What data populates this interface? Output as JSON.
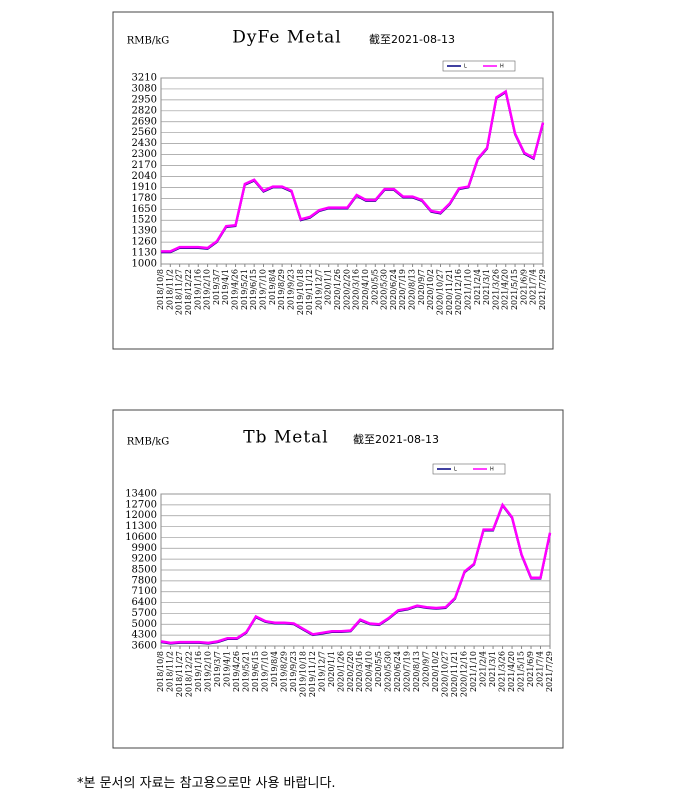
{
  "chart_data": [
    {
      "type": "line",
      "title": "DyFe Metal",
      "subtitle": "截至2021-08-13",
      "y_label": "RMB/kG",
      "categories": [
        "2018/10/8",
        "2018/11/2",
        "2018/11/27",
        "2018/12/22",
        "2019/1/16",
        "2019/2/10",
        "2019/3/7",
        "2019/4/1",
        "2019/4/26",
        "2019/5/21",
        "2019/6/15",
        "2019/7/10",
        "2019/8/4",
        "2019/8/29",
        "2019/9/23",
        "2019/10/18",
        "2019/11/12",
        "2019/12/7",
        "2020/1/1",
        "2020/1/26",
        "2020/2/20",
        "2020/3/16",
        "2020/4/10",
        "2020/5/5",
        "2020/5/30",
        "2020/6/24",
        "2020/7/19",
        "2020/8/13",
        "2020/9/7",
        "2020/10/2",
        "2020/10/27",
        "2020/11/21",
        "2020/12/16",
        "2021/1/10",
        "2021/2/4",
        "2021/3/1",
        "2021/3/26",
        "2021/4/20",
        "2021/5/15",
        "2021/6/9",
        "2021/7/4",
        "2021/7/29"
      ],
      "series": [
        {
          "name": "L",
          "color": "#000080",
          "values": [
            1140,
            1140,
            1190,
            1190,
            1190,
            1180,
            1260,
            1440,
            1450,
            1940,
            1990,
            1860,
            1910,
            1910,
            1860,
            1520,
            1550,
            1630,
            1660,
            1660,
            1660,
            1810,
            1750,
            1750,
            1880,
            1880,
            1790,
            1790,
            1750,
            1620,
            1600,
            1710,
            1890,
            1910,
            2240,
            2370,
            2970,
            3040,
            2540,
            2310,
            2250,
            2670
          ]
        },
        {
          "name": "H",
          "color": "#ff00ff",
          "values": [
            1150,
            1150,
            1200,
            1200,
            1200,
            1190,
            1270,
            1450,
            1460,
            1950,
            2000,
            1870,
            1920,
            1920,
            1870,
            1530,
            1560,
            1640,
            1670,
            1670,
            1670,
            1820,
            1760,
            1760,
            1890,
            1890,
            1800,
            1800,
            1760,
            1630,
            1610,
            1720,
            1900,
            1920,
            2250,
            2380,
            2980,
            3050,
            2550,
            2320,
            2260,
            2680
          ]
        }
      ],
      "ylim": [
        1000,
        3210
      ],
      "yticks": [
        1000,
        1130,
        1260,
        1390,
        1520,
        1650,
        1780,
        1910,
        2040,
        2170,
        2300,
        2430,
        2560,
        2690,
        2820,
        2950,
        3080,
        3210
      ],
      "grid": true
    },
    {
      "type": "line",
      "title": "Tb Metal",
      "subtitle": "截至2021-08-13",
      "y_label": "RMB/kG",
      "categories": [
        "2018/10/8",
        "2018/11/2",
        "2018/11/27",
        "2018/12/22",
        "2019/1/16",
        "2019/2/10",
        "2019/3/7",
        "2019/4/1",
        "2019/4/26",
        "2019/5/21",
        "2019/6/15",
        "2019/7/10",
        "2019/8/4",
        "2019/8/29",
        "2019/9/23",
        "2019/10/18",
        "2019/11/12",
        "2019/12/7",
        "2020/1/1",
        "2020/1/26",
        "2020/2/20",
        "2020/3/16",
        "2020/4/10",
        "2020/5/5",
        "2020/5/30",
        "2020/6/24",
        "2020/7/19",
        "2020/8/13",
        "2020/9/7",
        "2020/10/2",
        "2020/10/27",
        "2020/11/21",
        "2020/12/16",
        "2021/1/10",
        "2021/2/4",
        "2021/3/1",
        "2021/3/26",
        "2021/4/20",
        "2021/5/15",
        "2021/6/9",
        "2021/7/4",
        "2021/7/29"
      ],
      "series": [
        {
          "name": "L",
          "color": "#000080",
          "values": [
            3850,
            3750,
            3800,
            3800,
            3800,
            3750,
            3850,
            4050,
            4050,
            4450,
            5450,
            5150,
            5050,
            5050,
            5000,
            4650,
            4300,
            4400,
            4500,
            4500,
            4550,
            5250,
            5000,
            4950,
            5350,
            5850,
            5950,
            6150,
            6050,
            6000,
            6050,
            6650,
            8350,
            8850,
            11050,
            11050,
            12650,
            11850,
            9450,
            7950,
            7950,
            10850
          ]
        },
        {
          "name": "H",
          "color": "#ff00ff",
          "values": [
            3900,
            3800,
            3850,
            3850,
            3850,
            3800,
            3900,
            4100,
            4100,
            4500,
            5500,
            5200,
            5100,
            5100,
            5050,
            4700,
            4350,
            4450,
            4550,
            4550,
            4600,
            5300,
            5050,
            5000,
            5400,
            5900,
            6000,
            6200,
            6100,
            6050,
            6100,
            6700,
            8400,
            8900,
            11100,
            11100,
            12700,
            11900,
            9500,
            8000,
            8000,
            10900
          ]
        }
      ],
      "ylim": [
        3600,
        13400
      ],
      "yticks": [
        3600,
        4300,
        5000,
        5700,
        6400,
        7100,
        7800,
        8500,
        9200,
        9900,
        10600,
        11300,
        12000,
        12700,
        13400
      ],
      "grid": true
    }
  ],
  "footer": "*본 문서의 자료는 참고용으로만 사용 바랍니다."
}
